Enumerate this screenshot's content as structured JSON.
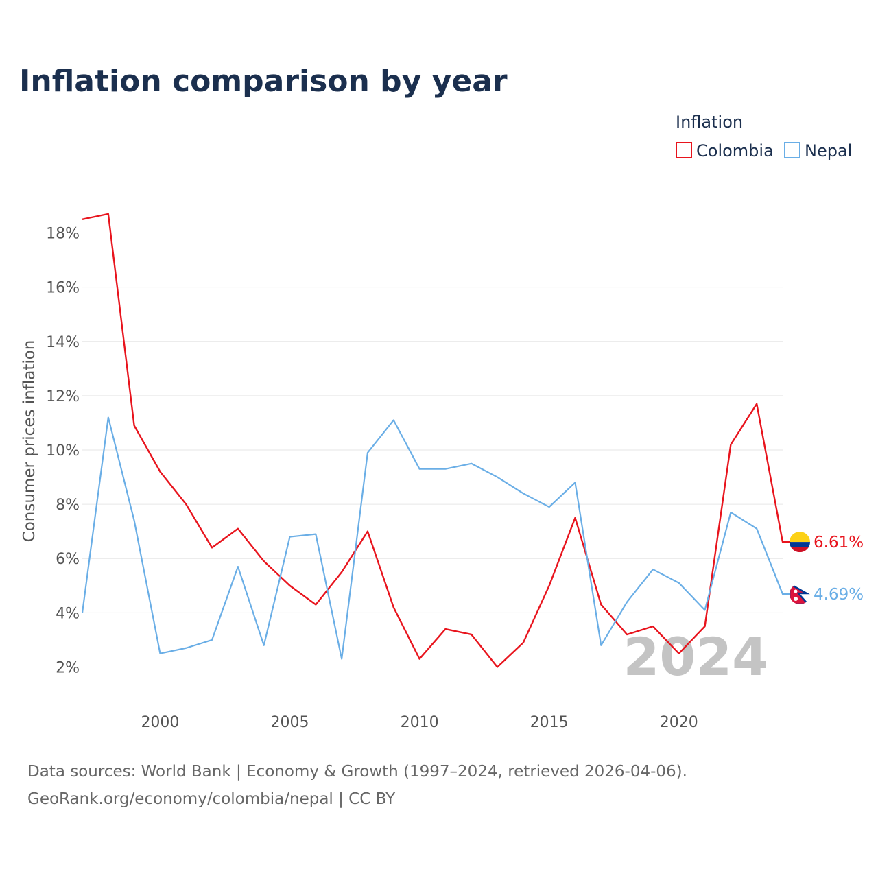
{
  "title": "Inflation comparison by year",
  "legend": {
    "title": "Inflation"
  },
  "year_display": "2024",
  "footer": {
    "line1": "Data sources: World Bank | Economy & Growth (1997–2024, retrieved 2026-04-06).",
    "line2": "GeoRank.org/economy/colombia/nepal | CC BY"
  },
  "chart_data": {
    "type": "line",
    "title": "Inflation comparison by year",
    "xlabel": "",
    "ylabel": "Consumer prices inflation",
    "xlim": [
      1997,
      2024
    ],
    "ylim": [
      1,
      19
    ],
    "x_ticks": [
      2000,
      2005,
      2010,
      2015,
      2020
    ],
    "y_ticks": [
      2,
      4,
      6,
      8,
      10,
      12,
      14,
      16,
      18
    ],
    "y_tick_format": "%",
    "grid": true,
    "legend_position": "top-right",
    "x": [
      1997,
      1998,
      1999,
      2000,
      2001,
      2002,
      2003,
      2004,
      2005,
      2006,
      2007,
      2008,
      2009,
      2010,
      2011,
      2012,
      2013,
      2014,
      2015,
      2016,
      2017,
      2018,
      2019,
      2020,
      2021,
      2022,
      2023,
      2024
    ],
    "series": [
      {
        "name": "Colombia",
        "color": "#e8141d",
        "end_label": "6.61%",
        "flag_icon": "colombia-flag-icon",
        "values": [
          18.5,
          18.7,
          10.9,
          9.2,
          8.0,
          6.4,
          7.1,
          5.9,
          5.0,
          4.3,
          5.5,
          7.0,
          4.2,
          2.3,
          3.4,
          3.2,
          2.0,
          2.9,
          5.0,
          7.5,
          4.3,
          3.2,
          3.5,
          2.5,
          3.5,
          10.2,
          11.7,
          6.61
        ]
      },
      {
        "name": "Nepal",
        "color": "#6aaee6",
        "end_label": "4.69%",
        "flag_icon": "nepal-flag-icon",
        "values": [
          4.0,
          11.2,
          7.4,
          2.5,
          2.7,
          3.0,
          5.7,
          2.8,
          6.8,
          6.9,
          2.3,
          9.9,
          11.1,
          9.3,
          9.3,
          9.5,
          9.0,
          8.4,
          7.9,
          8.8,
          2.8,
          4.4,
          5.6,
          5.1,
          4.1,
          7.7,
          7.1,
          4.69
        ]
      }
    ]
  }
}
